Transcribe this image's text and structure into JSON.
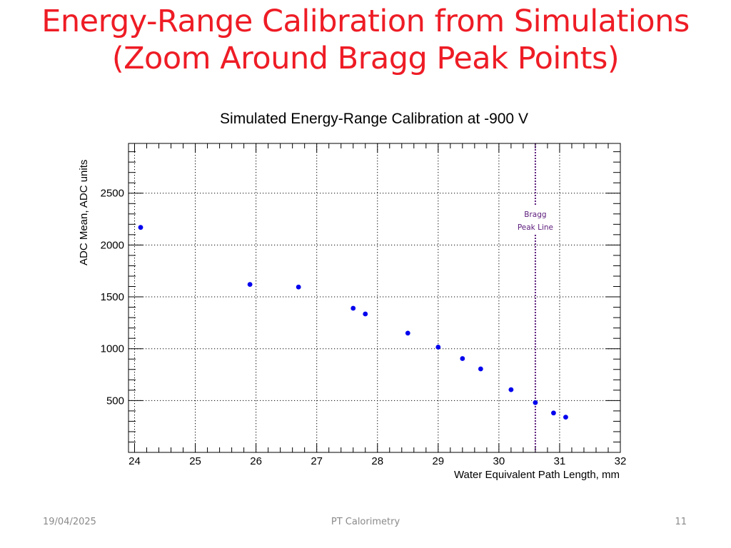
{
  "slide": {
    "title_line1": "Energy-Range Calibration from Simulations",
    "title_line2": "(Zoom Around Bragg Peak Points)",
    "footer_date": "19/04/2025",
    "footer_center": "PT Calorimetry",
    "footer_page": "11"
  },
  "chart_data": {
    "type": "scatter",
    "title": "Simulated Energy-Range Calibration at -900 V",
    "xlabel": "Water Equivalent Path Length, mm",
    "ylabel": "ADC Mean, ADC units",
    "xlim": [
      23.9,
      32
    ],
    "ylim": [
      0,
      2980
    ],
    "x_ticks": [
      24,
      25,
      26,
      27,
      28,
      29,
      30,
      31,
      32
    ],
    "y_ticks": [
      500,
      1000,
      1500,
      2000,
      2500
    ],
    "grid": true,
    "point_color": "#0000ee",
    "series": [
      {
        "x": [
          24.1,
          25.9,
          26.7,
          27.6,
          27.8,
          28.5,
          29.0,
          29.4,
          29.7,
          30.2,
          30.6,
          30.9,
          31.1
        ],
        "y": [
          2170,
          1620,
          1595,
          1390,
          1335,
          1150,
          1015,
          905,
          805,
          605,
          480,
          380,
          340
        ]
      }
    ],
    "annotation": {
      "x": 30.6,
      "label_line1": "Bragg",
      "label_line2": "Peak Line",
      "color": "#5b1a7a"
    }
  }
}
